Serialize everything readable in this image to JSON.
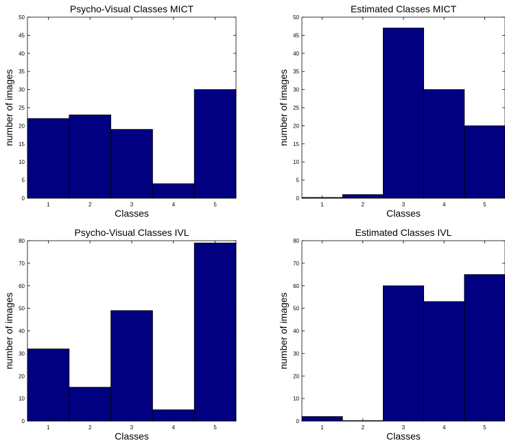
{
  "chart_data": [
    {
      "type": "bar",
      "title": "Psycho-Visual Classes MICT",
      "xlabel": "Classes",
      "ylabel": "number of images",
      "categories": [
        "1",
        "2",
        "3",
        "4",
        "5"
      ],
      "values": [
        22,
        23,
        19,
        4,
        30
      ],
      "ylim": [
        0,
        50
      ],
      "yticks": [
        0,
        5,
        10,
        15,
        20,
        25,
        30,
        35,
        40,
        45,
        50
      ],
      "bar_color": "#000080",
      "grid": false
    },
    {
      "type": "bar",
      "title": "Estimated Classes MICT",
      "xlabel": "Classes",
      "ylabel": "number of images",
      "categories": [
        "1",
        "2",
        "3",
        "4",
        "5"
      ],
      "values": [
        0.2,
        1,
        47,
        30,
        20
      ],
      "ylim": [
        0,
        50
      ],
      "yticks": [
        0,
        5,
        10,
        15,
        20,
        25,
        30,
        35,
        40,
        45,
        50
      ],
      "bar_color": "#000080",
      "grid": false
    },
    {
      "type": "bar",
      "title": "Psycho-Visual Classes IVL",
      "xlabel": "Classes",
      "ylabel": "number of images",
      "categories": [
        "1",
        "2",
        "3",
        "4",
        "5"
      ],
      "values": [
        32,
        15,
        49,
        5,
        79
      ],
      "ylim": [
        0,
        80
      ],
      "yticks": [
        0,
        10,
        20,
        30,
        40,
        50,
        60,
        70,
        80
      ],
      "bar_color": "#000080",
      "grid": false
    },
    {
      "type": "bar",
      "title": "Estimated Classes IVL",
      "xlabel": "Classes",
      "ylabel": "number of images",
      "categories": [
        "1",
        "2",
        "3",
        "4",
        "5"
      ],
      "values": [
        2,
        0.2,
        60,
        53,
        65
      ],
      "ylim": [
        0,
        80
      ],
      "yticks": [
        0,
        10,
        20,
        30,
        40,
        50,
        60,
        70,
        80
      ],
      "bar_color": "#000080",
      "grid": false
    }
  ]
}
